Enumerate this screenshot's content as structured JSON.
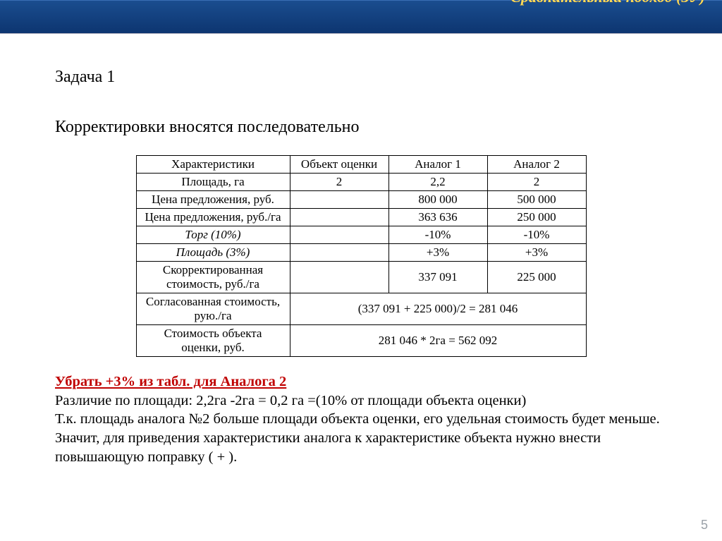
{
  "header": {
    "title": "Сравнительный подход (ЗУ)"
  },
  "task": {
    "number": "Задача 1",
    "subtitle": "Корректировки вносятся последовательно"
  },
  "table": {
    "cols": {
      "c0": "Характеристики",
      "c1": "Объект оценки",
      "c2": "Аналог 1",
      "c3": "Аналог 2"
    },
    "r1": {
      "label": "Площадь, га",
      "v1": "2",
      "v2": "2,2",
      "v3": "2"
    },
    "r2": {
      "label": "Цена предложения, руб.",
      "v1": "",
      "v2": "800 000",
      "v3": "500 000"
    },
    "r3": {
      "label": "Цена предложения, руб./га",
      "v1": "",
      "v2": "363 636",
      "v3": "250 000"
    },
    "r4": {
      "label": "Торг (10%)",
      "v1": "",
      "v2": "-10%",
      "v3": "-10%"
    },
    "r5": {
      "label": "Площадь (3%)",
      "v1": "",
      "v2": "+3%",
      "v3": "+3%"
    },
    "r6": {
      "label": "Скорректированная стоимость, руб./га",
      "v1": "",
      "v2": "337 091",
      "v3": "225 000"
    },
    "r7": {
      "label": "Согласованная стоимость, рую./га",
      "merged": "(337 091 + 225 000)/2 = 281 046"
    },
    "r8": {
      "label": "Стоимость объекта оценки, руб.",
      "merged": "281 046 * 2га = 562 092"
    }
  },
  "notes": {
    "red": "Убрать +3% из табл. для Аналога 2",
    "line1": "Различие по площади:  2,2га -2га  = 0,2 га =(10% от площади объекта оценки)",
    "line2": "Т.к. площадь аналога №2 больше площади объекта оценки, его удельная стоимость будет меньше. Значит, для приведения характеристики аналога к характеристике объекта нужно внести повышающую поправку ( + )."
  },
  "page": {
    "number": "5"
  }
}
